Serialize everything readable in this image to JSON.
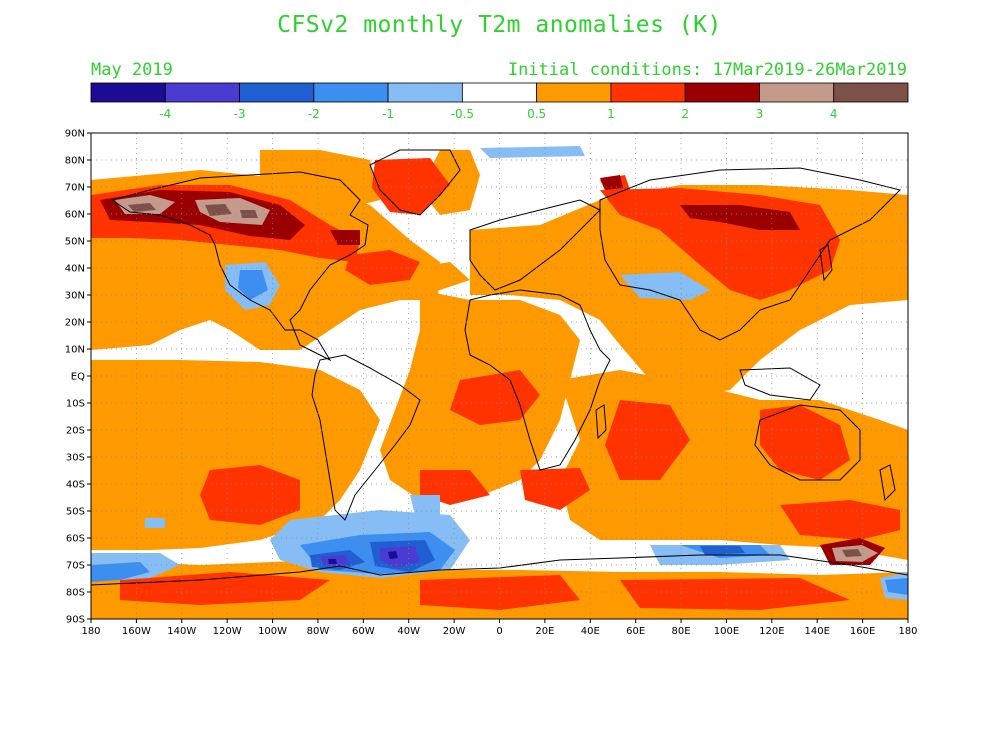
{
  "header": {
    "title": "CFSv2 monthly T2m anomalies (K)",
    "valid_month": "May 2019",
    "initial_conditions": "Initial conditions: 17Mar2019-26Mar2019"
  },
  "colorbar": {
    "colors": [
      "#1c0c94",
      "#4a3bd2",
      "#1f5fd1",
      "#3c8ef0",
      "#86bdf5",
      "#ffffff",
      "#ff9900",
      "#ff3300",
      "#9b0000",
      "#c49a8c",
      "#7d5147"
    ],
    "labels": [
      "-4",
      "-3",
      "-2",
      "-1",
      "-0.5",
      "0.5",
      "1",
      "2",
      "3",
      "4"
    ]
  },
  "map": {
    "lat_labels": [
      "90N",
      "80N",
      "70N",
      "60N",
      "50N",
      "40N",
      "30N",
      "20N",
      "10N",
      "EQ",
      "10S",
      "20S",
      "30S",
      "40S",
      "50S",
      "60S",
      "70S",
      "80S",
      "90S"
    ],
    "lon_labels": [
      "180",
      "160W",
      "140W",
      "120W",
      "100W",
      "80W",
      "60W",
      "40W",
      "20W",
      "0",
      "20E",
      "40E",
      "60E",
      "80E",
      "100E",
      "120E",
      "140E",
      "160E",
      "180"
    ],
    "fill_colors": {
      "white": "#ffffff",
      "orange": "#ff9900",
      "red": "#ff3300",
      "darkred": "#9b0000",
      "brown": "#c49a8c",
      "darkbrown": "#7d5147",
      "lightblue": "#86bdf5",
      "blue": "#3c8ef0",
      "medblue": "#1f5fd1",
      "violet": "#4a3bd2",
      "darkviolet": "#1c0c94"
    }
  }
}
